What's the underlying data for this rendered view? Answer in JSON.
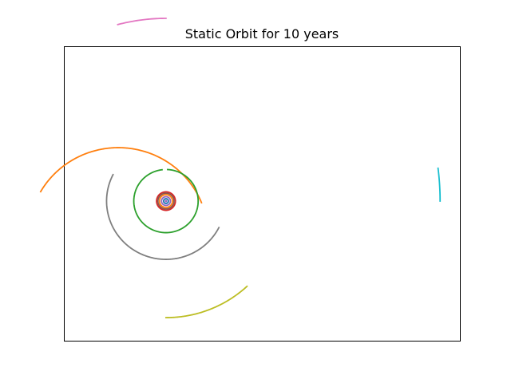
{
  "chart_data": {
    "type": "line",
    "title": "Static Orbit for 10 years",
    "xlabel": "",
    "ylabel": "",
    "axes_visible": false,
    "ticks_visible": false,
    "grid": false,
    "legend": "none",
    "sun": {
      "x": 0.0,
      "y": 0.0
    },
    "series": [
      {
        "color": "#1f77b4",
        "arcs": [
          {
            "cx": 0.0,
            "cy": 0.0,
            "r": 39.5,
            "start_deg": 181,
            "end_deg": 185
          }
        ]
      },
      {
        "color": "#ff7f0e",
        "arcs": [
          {
            "cx": 0.0,
            "cy": 0.0,
            "r": 1.05,
            "start_deg": 0,
            "end_deg": 360
          },
          {
            "cx": -7.7,
            "cy": -5.7,
            "r": 14.5,
            "start_deg": 22,
            "end_deg": 150
          }
        ]
      },
      {
        "color": "#2ca02c",
        "arcs": [
          {
            "cx": 0.0,
            "cy": 0.0,
            "r": 5.2,
            "start_deg": 97,
            "end_deg": 447
          }
        ]
      },
      {
        "color": "#d62728",
        "arcs": [
          {
            "cx": 0.0,
            "cy": 0.0,
            "r": 1.52,
            "start_deg": 0,
            "end_deg": 360
          }
        ]
      },
      {
        "color": "#9467bd",
        "arcs": [
          {
            "cx": 0.0,
            "cy": 0.0,
            "r": 0.72,
            "start_deg": 0,
            "end_deg": 360
          }
        ]
      },
      {
        "color": "#8c564b",
        "arcs": [
          {
            "cx": 0.0,
            "cy": 0.0,
            "r": 1.3,
            "start_deg": 0,
            "end_deg": 360
          }
        ]
      },
      {
        "color": "#e377c2",
        "arcs": [
          {
            "cx": 0.0,
            "cy": 0.0,
            "r": 30.1,
            "start_deg": 90,
            "end_deg": 105
          }
        ]
      },
      {
        "color": "#7f7f7f",
        "arcs": [
          {
            "cx": 0.0,
            "cy": 0.0,
            "r": 9.6,
            "start_deg": 153,
            "end_deg": 333
          }
        ]
      },
      {
        "color": "#bcbd22",
        "arcs": [
          {
            "cx": 0.0,
            "cy": 0.0,
            "r": 19.2,
            "start_deg": 270,
            "end_deg": 313
          }
        ]
      },
      {
        "color": "#17becf",
        "arcs": [
          {
            "cx": 0.0,
            "cy": 0.0,
            "r": 44.3,
            "start_deg": 0,
            "end_deg": 7
          }
        ]
      },
      {
        "color": "#1f77b4",
        "arcs": [
          {
            "cx": 0.0,
            "cy": 0.0,
            "r": 0.39,
            "start_deg": 0,
            "end_deg": 360
          }
        ]
      }
    ],
    "xlim": [
      -16.5,
      47.5
    ],
    "ylim": [
      -23.0,
      25.5
    ]
  }
}
